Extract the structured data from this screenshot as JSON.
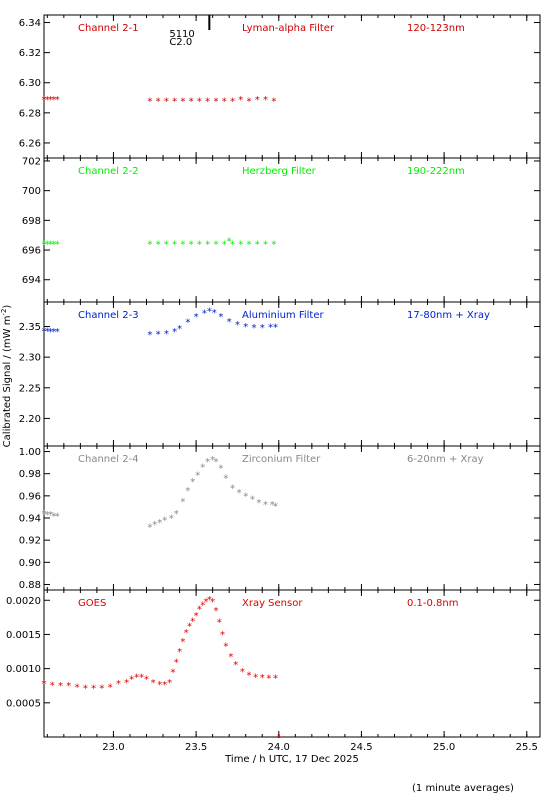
{
  "chart_data": {
    "type": "scatter",
    "xlabel": "Time / h UTC, 17 Dec 2025",
    "ylabel": "Calibrated Signal / (mW m",
    "ylabel_sup": "-2",
    "ylabel_tail": ")",
    "footnote": "(1 minute averages)",
    "xlim": [
      22.58,
      25.58
    ],
    "xticks": [
      23.0,
      23.5,
      24.0,
      24.5,
      25.0,
      25.5
    ],
    "xtick_labels": [
      "23.0",
      "23.5",
      "24.0",
      "24.5",
      "25.0",
      "25.5"
    ],
    "flare_marker": {
      "x": 23.58,
      "label_top": "5110",
      "label_bottom": "C2.0"
    },
    "panels": [
      {
        "name": "Channel 2-1",
        "filter": "Lyman-alpha Filter",
        "band": "120-123nm",
        "color": "#cc0000",
        "ylim": [
          6.25,
          6.345
        ],
        "yticks": [
          6.26,
          6.28,
          6.3,
          6.32,
          6.34
        ],
        "ytick_labels": [
          "6.26",
          "6.28",
          "6.30",
          "6.32",
          "6.34"
        ],
        "series": [
          {
            "x": [
              22.58,
              22.6,
              22.62,
              22.64,
              22.66
            ],
            "y": [
              6.289,
              6.289,
              6.289,
              6.289,
              6.289
            ]
          },
          {
            "x": [
              23.22,
              23.27,
              23.32,
              23.37,
              23.42,
              23.47,
              23.52,
              23.57,
              23.62,
              23.67,
              23.72,
              23.77,
              23.82,
              23.87,
              23.92,
              23.97
            ],
            "y": [
              6.288,
              6.288,
              6.288,
              6.288,
              6.288,
              6.288,
              6.288,
              6.288,
              6.288,
              6.288,
              6.288,
              6.289,
              6.288,
              6.289,
              6.289,
              6.288
            ]
          }
        ]
      },
      {
        "name": "Channel 2-2",
        "filter": "Herzberg Filter",
        "band": "190-222nm",
        "color": "#00ee00",
        "ylim": [
          692.5,
          702.2
        ],
        "yticks": [
          694,
          696,
          698,
          700,
          702
        ],
        "ytick_labels": [
          "694",
          "696",
          "698",
          "700",
          "702"
        ],
        "series": [
          {
            "x": [
              22.58,
              22.6,
              22.62,
              22.64,
              22.66
            ],
            "y": [
              696.4,
              696.4,
              696.4,
              696.4,
              696.4
            ]
          },
          {
            "x": [
              23.22,
              23.27,
              23.32,
              23.37,
              23.42,
              23.47,
              23.52,
              23.57,
              23.62,
              23.67,
              23.7,
              23.72,
              23.77,
              23.82,
              23.87,
              23.92,
              23.97
            ],
            "y": [
              696.4,
              696.4,
              696.4,
              696.4,
              696.4,
              696.4,
              696.4,
              696.4,
              696.4,
              696.4,
              696.6,
              696.4,
              696.4,
              696.4,
              696.4,
              696.4,
              696.4
            ]
          }
        ]
      },
      {
        "name": "Channel 2-3",
        "filter": "Aluminium Filter",
        "band": "17-80nm + Xray",
        "color": "#0022cc",
        "ylim": [
          2.155,
          2.39
        ],
        "yticks": [
          2.2,
          2.25,
          2.3,
          2.35
        ],
        "ytick_labels": [
          "2.20",
          "2.25",
          "2.30",
          "2.35"
        ],
        "series": [
          {
            "x": [
              22.58,
              22.6,
              22.62,
              22.64,
              22.66
            ],
            "y": [
              2.343,
              2.343,
              2.342,
              2.342,
              2.342
            ]
          },
          {
            "x": [
              23.22,
              23.27,
              23.32,
              23.37,
              23.4,
              23.45,
              23.5,
              23.55,
              23.58,
              23.61,
              23.65,
              23.7,
              23.75,
              23.8,
              23.85,
              23.9,
              23.95,
              23.98
            ],
            "y": [
              2.337,
              2.338,
              2.339,
              2.342,
              2.347,
              2.357,
              2.366,
              2.372,
              2.375,
              2.373,
              2.366,
              2.358,
              2.353,
              2.35,
              2.348,
              2.348,
              2.349,
              2.349
            ]
          }
        ]
      },
      {
        "name": "Channel 2-4",
        "filter": "Zirconium Filter",
        "band": "6-20nm + Xray",
        "color": "#888888",
        "ylim": [
          0.875,
          1.005
        ],
        "yticks": [
          0.88,
          0.9,
          0.92,
          0.94,
          0.96,
          0.98,
          1.0
        ],
        "ytick_labels": [
          "0.88",
          "0.90",
          "0.92",
          "0.94",
          "0.96",
          "0.98",
          "1.00"
        ],
        "series": [
          {
            "x": [
              22.58,
              22.6,
              22.62,
              22.64,
              22.66
            ],
            "y": [
              0.944,
              0.943,
              0.943,
              0.942,
              0.942
            ]
          },
          {
            "x": [
              23.22,
              23.25,
              23.28,
              23.31,
              23.35,
              23.38,
              23.42,
              23.45,
              23.48,
              23.51,
              23.54,
              23.57,
              23.6,
              23.62,
              23.65,
              23.68,
              23.72,
              23.76,
              23.8,
              23.84,
              23.88,
              23.92,
              23.96,
              23.98
            ],
            "y": [
              0.932,
              0.934,
              0.936,
              0.938,
              0.94,
              0.944,
              0.955,
              0.965,
              0.973,
              0.979,
              0.986,
              0.991,
              0.993,
              0.991,
              0.985,
              0.976,
              0.967,
              0.963,
              0.96,
              0.957,
              0.954,
              0.952,
              0.952,
              0.951
            ]
          }
        ]
      },
      {
        "name": "GOES",
        "filter": "Xray Sensor",
        "band": "0.1-0.8nm",
        "color": "#dd0000",
        "ylim": [
          0.0,
          0.00215
        ],
        "yticks": [
          0.0005,
          0.001,
          0.0015,
          0.002
        ],
        "ytick_labels": [
          "0.0005",
          "0.0010",
          "0.0015",
          "0.0020"
        ],
        "series": [
          {
            "x": [
              22.58,
              22.63,
              22.68,
              22.73,
              22.78,
              22.83,
              22.88,
              22.93,
              22.98,
              23.03,
              23.08,
              23.11,
              23.14,
              23.17,
              23.2,
              23.24,
              23.28,
              23.31,
              23.34,
              23.36,
              23.38,
              23.4,
              23.42,
              23.44,
              23.46,
              23.48,
              23.5,
              23.52,
              23.54,
              23.56,
              23.58,
              23.6,
              23.62,
              23.64,
              23.66,
              23.68,
              23.71,
              23.74,
              23.78,
              23.82,
              23.86,
              23.9,
              23.94,
              23.98
            ],
            "y": [
              0.00078,
              0.00076,
              0.00075,
              0.00075,
              0.00073,
              0.00072,
              0.00072,
              0.00072,
              0.00073,
              0.00078,
              0.0008,
              0.00085,
              0.00088,
              0.00088,
              0.00085,
              0.0008,
              0.00077,
              0.00077,
              0.0008,
              0.00095,
              0.0011,
              0.00125,
              0.0014,
              0.00153,
              0.00162,
              0.0017,
              0.00178,
              0.00187,
              0.00193,
              0.00198,
              0.00201,
              0.00198,
              0.00185,
              0.00168,
              0.0015,
              0.00133,
              0.00118,
              0.00106,
              0.00096,
              0.00091,
              0.00088,
              0.00087,
              0.00086,
              0.00086
            ]
          }
        ]
      }
    ]
  }
}
